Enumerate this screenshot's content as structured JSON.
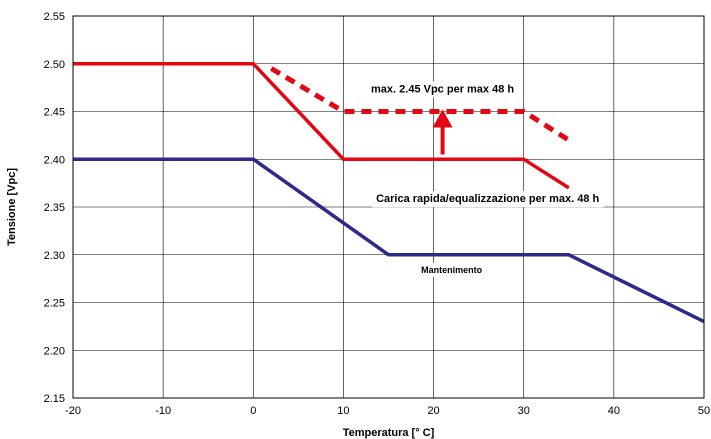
{
  "chart_data": {
    "type": "line",
    "xlabel": "Temperatura [° C]",
    "ylabel": "Tensione [Vpc]",
    "xlim": [
      -20,
      50
    ],
    "ylim": [
      2.15,
      2.55
    ],
    "x_ticks": [
      "-20",
      "-10",
      "0",
      "10",
      "20",
      "30",
      "40",
      "50"
    ],
    "y_ticks": [
      "2.15",
      "2.20",
      "2.25",
      "2.30",
      "2.35",
      "2.40",
      "2.45",
      "2.50",
      "2.55"
    ],
    "grid": true,
    "series": [
      {
        "key": "equalization_max",
        "color": "#e30613",
        "style": "dashed",
        "x": [
          2,
          10,
          30,
          35
        ],
        "y": [
          2.495,
          2.45,
          2.45,
          2.42
        ]
      },
      {
        "key": "fast_charge",
        "color": "#e30613",
        "style": "solid",
        "x": [
          -20,
          0,
          10,
          30,
          35
        ],
        "y": [
          2.5,
          2.5,
          2.4,
          2.4,
          2.37
        ]
      },
      {
        "key": "float",
        "color": "#2e2a8a",
        "style": "solid",
        "x": [
          -20,
          0,
          15,
          35,
          50
        ],
        "y": [
          2.4,
          2.4,
          2.3,
          2.3,
          2.23
        ]
      }
    ],
    "annotations": [
      {
        "text": "max. 2.45 Vpc per max 48 h",
        "x": 21,
        "y": 2.47
      },
      {
        "text": "Carica rapida/equalizzazione per max. 48 h",
        "x": 26,
        "y": 2.355
      },
      {
        "text": "Mantenimento",
        "x": 22,
        "y": 2.281
      }
    ],
    "arrow": {
      "x": 21,
      "y_from": 2.405,
      "y_to": 2.45,
      "color": "#e30613"
    }
  }
}
